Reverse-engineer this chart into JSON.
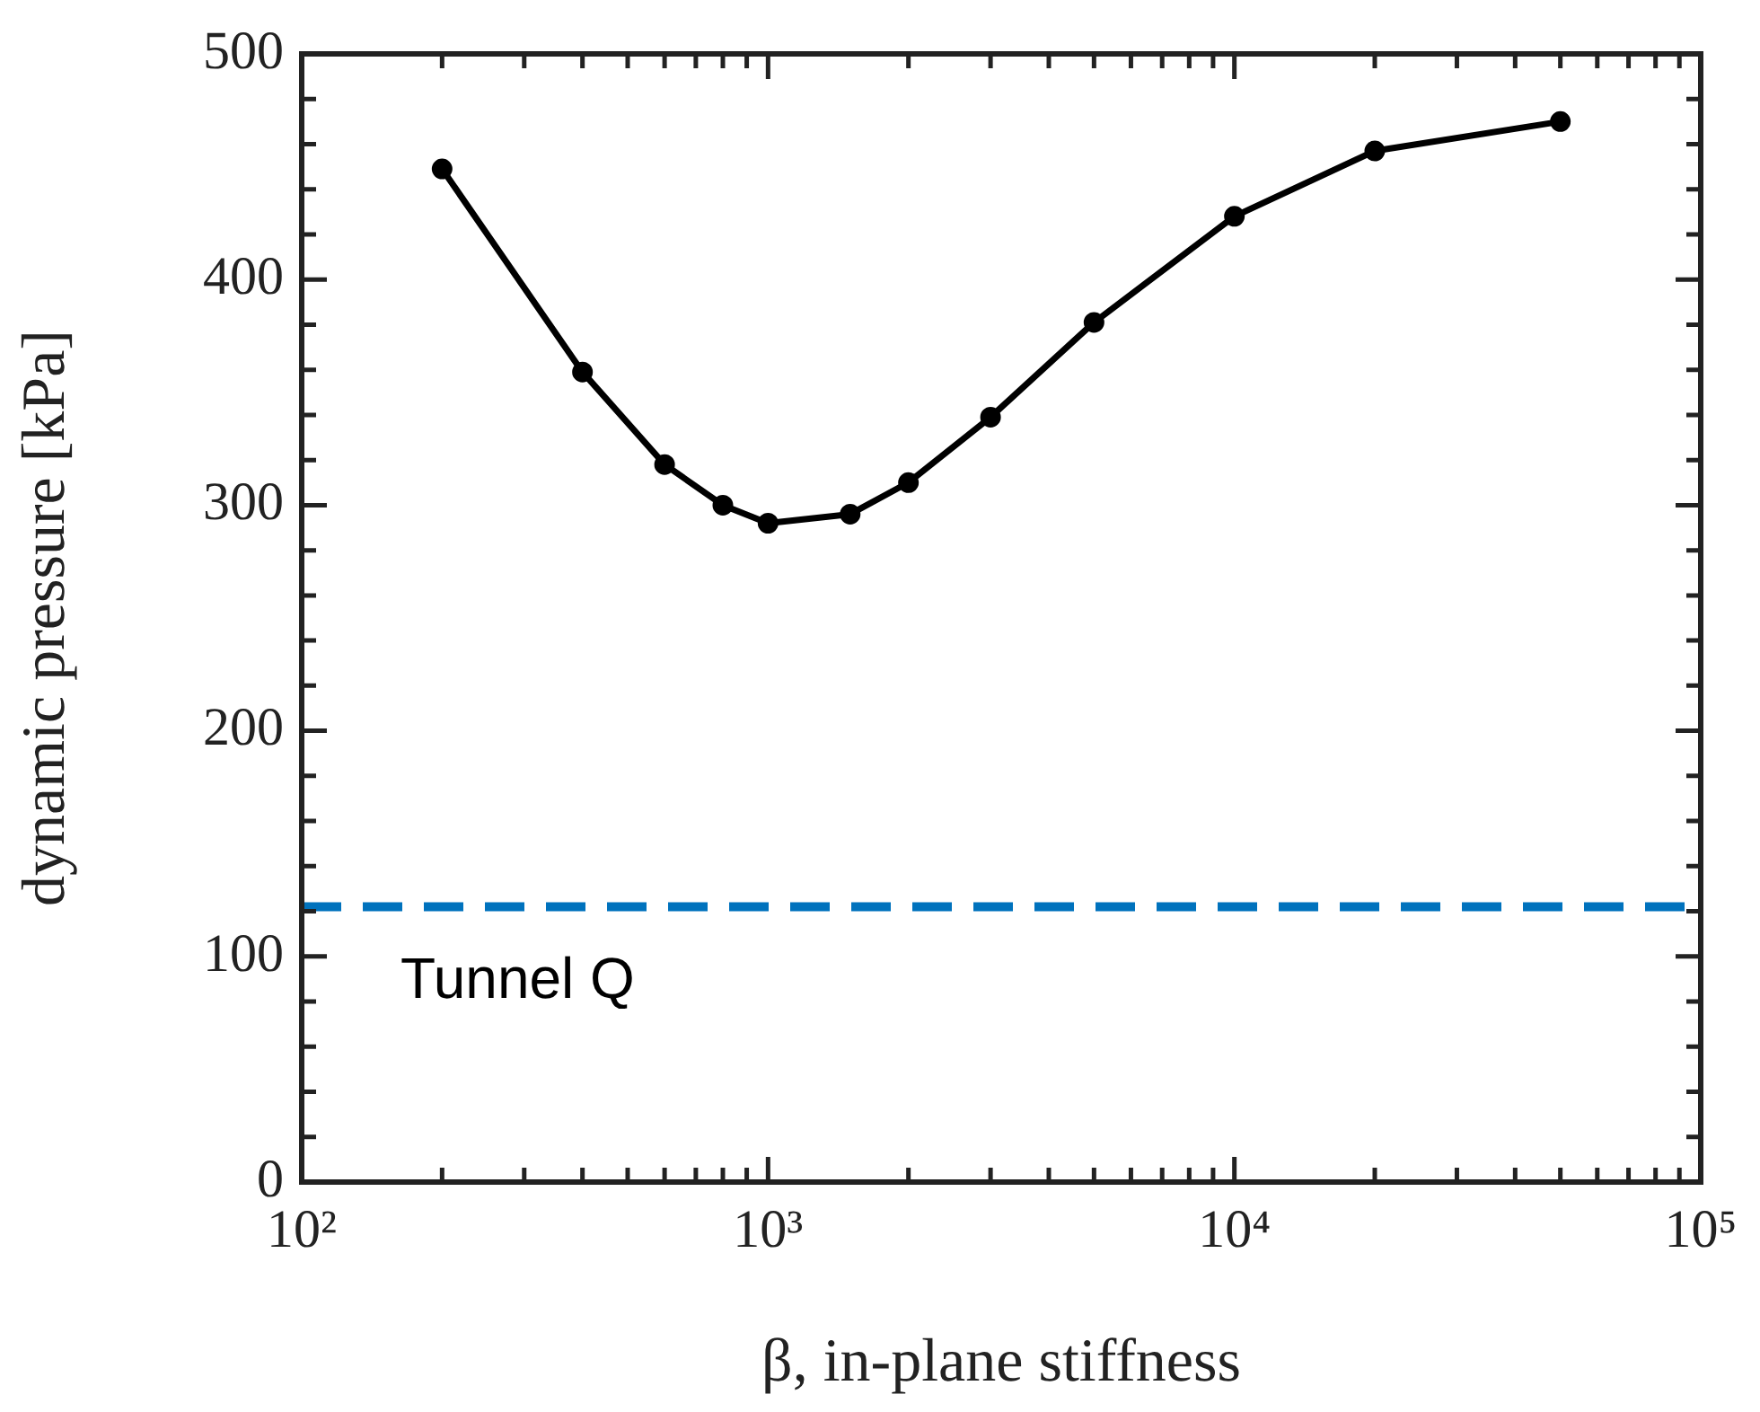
{
  "chart_data": {
    "type": "line",
    "xlabel": "β, in-plane stiffness",
    "ylabel": "dynamic pressure [kPa]",
    "log": "x",
    "x": [
      200,
      400,
      600,
      800,
      1000,
      1500,
      2000,
      3000,
      5000,
      10000,
      20000,
      50000
    ],
    "series": [
      {
        "color": "#000000",
        "values": [
          449,
          359,
          318,
          300,
          292,
          296,
          310,
          339,
          381,
          428,
          457,
          470
        ]
      }
    ],
    "xlim": [
      100,
      100000
    ],
    "xticks": [
      {
        "value": 100,
        "label": "10²"
      },
      {
        "value": 1000,
        "label": "10³"
      },
      {
        "value": 10000,
        "label": "10⁴"
      },
      {
        "value": 100000,
        "label": "10⁵"
      }
    ],
    "ylim": [
      0,
      500
    ],
    "yticks": [
      0,
      100,
      200,
      300,
      400,
      500
    ],
    "grid": false,
    "legend": false,
    "marker": "circle",
    "line_style": "solid",
    "ref_lines": [
      {
        "axis": "y",
        "value": 122,
        "label": "Tunnel Q",
        "color": "#0072bd",
        "line_style": "dashed"
      }
    ]
  }
}
